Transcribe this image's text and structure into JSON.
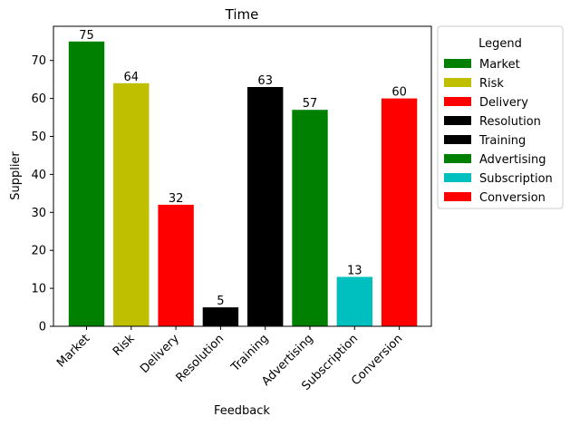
{
  "chart_data": {
    "type": "bar",
    "title": "Time",
    "xlabel": "Feedback",
    "ylabel": "Supplier",
    "categories": [
      "Market",
      "Risk",
      "Delivery",
      "Resolution",
      "Training",
      "Advertising",
      "Subscription",
      "Conversion"
    ],
    "values": [
      75,
      64,
      32,
      5,
      63,
      57,
      13,
      60
    ],
    "colors": [
      "#008000",
      "#bfbf00",
      "#ff0000",
      "#000000",
      "#000000",
      "#008000",
      "#00bfbf",
      "#ff0000"
    ],
    "ylim": [
      0,
      79
    ],
    "yticks": [
      0,
      10,
      20,
      30,
      40,
      50,
      60,
      70
    ],
    "grid": false,
    "legend": {
      "title": "Legend",
      "placement": "outside-right",
      "entries": [
        "Market",
        "Risk",
        "Delivery",
        "Resolution",
        "Training",
        "Advertising",
        "Subscription",
        "Conversion"
      ]
    }
  }
}
